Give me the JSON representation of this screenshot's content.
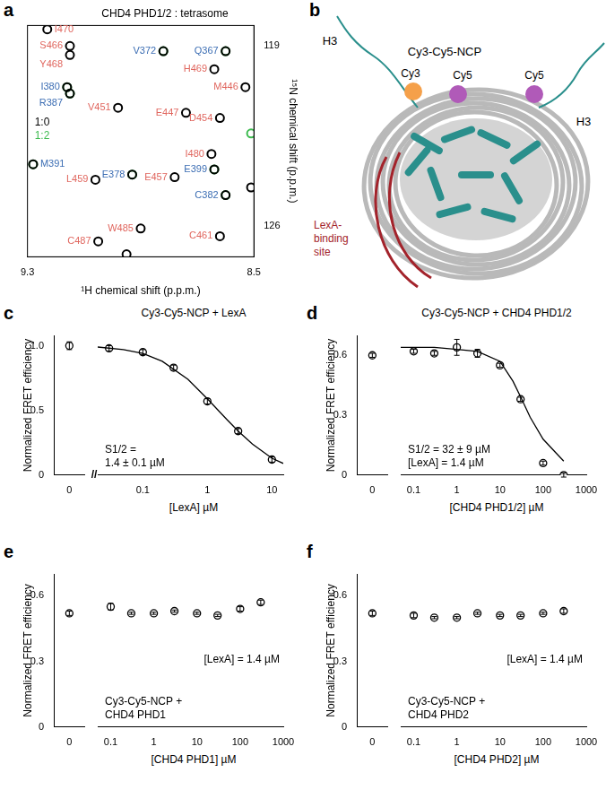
{
  "chart_data": [
    {
      "panel": "a",
      "type": "scatter",
      "title": "CHD4 PHD1/2 : tetrasome",
      "x_label": "¹H chemical shift (p.p.m.)",
      "y_label": "¹⁵N chemical shift (p.p.m.)",
      "xlim": [
        9.3,
        8.5
      ],
      "xticks": [
        9.3,
        8.5
      ],
      "ylim": [
        127.2,
        118.2
      ],
      "yticks": [
        119,
        126
      ],
      "grid": false,
      "legend": "left",
      "marker": "circle",
      "series": [
        {
          "name": "1:0",
          "color": "#000000",
          "x": [
            9.23,
            9.15,
            9.15,
            8.82,
            8.6,
            8.64,
            8.53,
            9.16,
            9.15,
            8.98,
            8.74,
            8.62,
            8.65,
            9.28,
            8.64,
            8.93,
            9.06,
            8.78,
            8.51,
            8.6,
            8.9,
            8.62,
            9.05,
            8.95
          ],
          "y": [
            118.35,
            119.0,
            119.35,
            119.2,
            119.2,
            119.9,
            120.6,
            120.6,
            120.85,
            121.4,
            121.6,
            121.8,
            123.2,
            123.6,
            123.8,
            124.0,
            124.2,
            124.1,
            124.5,
            124.8,
            126.1,
            126.4,
            126.6,
            127.1
          ],
          "point_labels": [
            "I470",
            "S466",
            "Y468",
            "V372",
            "Q367",
            "H469",
            "M446",
            "I380",
            "R387",
            "V451",
            "E447",
            "D454",
            "I480",
            "M391",
            "E399",
            "E378",
            "L459",
            "E457",
            null,
            "C382",
            "W485",
            "C461",
            "C487",
            null
          ],
          "point_label_colors": [
            "#e0665e",
            "#e0665e",
            "#e0665e",
            "#3b6db3",
            "#3b6db3",
            "#e0665e",
            "#e0665e",
            "#3b6db3",
            "#3b6db3",
            "#e0665e",
            "#e0665e",
            "#e0665e",
            "#e0665e",
            "#3b6db3",
            "#3b6db3",
            "#3b6db3",
            "#e0665e",
            "#e0665e",
            null,
            "#3b6db3",
            "#e0665e",
            "#e0665e",
            "#e0665e",
            null
          ]
        },
        {
          "name": "1:2",
          "color": "#3dbb4f",
          "x": [
            8.82,
            8.6,
            9.16,
            9.15,
            8.51,
            9.28,
            8.64,
            8.93,
            8.6
          ],
          "y": [
            119.2,
            119.2,
            120.6,
            120.85,
            122.4,
            123.6,
            123.8,
            124.0,
            124.8
          ]
        }
      ]
    },
    {
      "panel": "c",
      "type": "scatter",
      "title": "Cy3-Cy5-NCP + LexA",
      "x_label": "[LexA] µM",
      "y_label": "Normalized FRET efficiency",
      "log": "x",
      "grid": false,
      "color": "#000000",
      "marker": "circle",
      "x": [
        0,
        0.03,
        0.1,
        0.3,
        1,
        3,
        10
      ],
      "values": [
        1.0,
        0.98,
        0.95,
        0.83,
        0.57,
        0.34,
        0.12
      ],
      "errors": [
        0.03,
        0.02,
        0.02,
        0.02,
        0.02,
        0.02,
        0.02
      ],
      "fit": {
        "x": [
          0.02,
          0.05,
          0.1,
          0.2,
          0.5,
          1,
          2,
          3,
          5,
          10,
          15
        ],
        "values": [
          0.99,
          0.97,
          0.94,
          0.88,
          0.74,
          0.59,
          0.43,
          0.34,
          0.24,
          0.13,
          0.09
        ]
      },
      "xlim": [
        0.02,
        15
      ],
      "xticks": [
        0.1,
        1,
        10
      ],
      "x_break": {
        "xlim": [
          -1,
          1
        ],
        "xticks": [
          0
        ],
        "break_mark": "//"
      },
      "ylim": [
        0,
        1.08
      ],
      "yticks": [
        0,
        0.5,
        {
          "value": 1,
          "label": "1.0"
        }
      ],
      "annotations": [
        [
          "S1/2 =",
          "1.4 ± 0.1 µM"
        ]
      ]
    },
    {
      "panel": "d",
      "type": "scatter",
      "title": "Cy3-Cy5-NCP + CHD4 PHD1/2",
      "x_label": "[CHD4 PHD1/2] µM",
      "y_label": "Normalized FRET efficiency",
      "log": "x",
      "grid": false,
      "color": "#000000",
      "marker": "circle",
      "x": [
        0,
        0.1,
        0.3,
        1,
        3,
        10,
        30,
        100,
        300
      ],
      "values": [
        0.6,
        0.62,
        0.61,
        0.64,
        0.61,
        0.55,
        0.38,
        0.06,
        0.0
      ],
      "errors": [
        0.01,
        0.01,
        0.01,
        0.04,
        0.02,
        0.01,
        0.01,
        0.01,
        0.01
      ],
      "fit": {
        "x": [
          0.05,
          0.3,
          1,
          3,
          10,
          20,
          32,
          50,
          100,
          200,
          300
        ],
        "values": [
          0.64,
          0.64,
          0.63,
          0.62,
          0.57,
          0.47,
          0.38,
          0.29,
          0.18,
          0.11,
          0.07
        ]
      },
      "xlim": [
        0.05,
        1000
      ],
      "xticks": [
        0.1,
        1,
        10,
        100,
        1000
      ],
      "x_break": {
        "xlim": [
          -1,
          1
        ],
        "xticks": [
          0
        ]
      },
      "ylim": [
        0,
        0.7
      ],
      "yticks": [
        0,
        0.3,
        0.6
      ],
      "annotations": [
        [
          "S1/2 = 32 ± 9 µM",
          "[LexA] = 1.4 µM"
        ]
      ]
    },
    {
      "panel": "e",
      "type": "scatter",
      "x_label": "[CHD4 PHD1] µM",
      "y_label": "Normalized FRET efficiency",
      "log": "x",
      "grid": false,
      "color": "#000000",
      "marker": "circle",
      "x": [
        0,
        0.1,
        0.3,
        1,
        3,
        10,
        30,
        100,
        300
      ],
      "values": [
        0.52,
        0.55,
        0.52,
        0.52,
        0.53,
        0.52,
        0.51,
        0.54,
        0.57
      ],
      "errors": [
        0.01,
        0.015,
        0.005,
        0.005,
        0.005,
        0.005,
        0.005,
        0.01,
        0.01
      ],
      "xlim": [
        0.05,
        1000
      ],
      "xticks": [
        0.1,
        1,
        10,
        100,
        1000
      ],
      "x_break": {
        "xlim": [
          -1,
          1
        ],
        "xticks": [
          0
        ]
      },
      "ylim": [
        0,
        0.7
      ],
      "yticks": [
        0,
        0.3,
        0.6
      ],
      "annotations": [
        [
          "Cy3-Cy5-NCP +",
          "CHD4 PHD1"
        ],
        [
          "[LexA] = 1.4 µM"
        ]
      ]
    },
    {
      "panel": "f",
      "type": "scatter",
      "x_label": "[CHD4 PHD2] µM",
      "y_label": "Normalized FRET efficiency",
      "log": "x",
      "grid": false,
      "color": "#000000",
      "marker": "circle",
      "x": [
        0,
        0.1,
        0.3,
        1,
        3,
        10,
        30,
        100,
        300
      ],
      "values": [
        0.52,
        0.51,
        0.5,
        0.5,
        0.52,
        0.51,
        0.51,
        0.52,
        0.53
      ],
      "errors": [
        0.01,
        0.01,
        0.005,
        0.005,
        0.005,
        0.005,
        0.005,
        0.005,
        0.01
      ],
      "xlim": [
        0.05,
        1000
      ],
      "xticks": [
        0.1,
        1,
        10,
        100,
        1000
      ],
      "x_break": {
        "xlim": [
          -1,
          1
        ],
        "xticks": [
          0
        ]
      },
      "ylim": [
        0,
        0.7
      ],
      "yticks": [
        0,
        0.3,
        0.6
      ],
      "annotations": [
        [
          "Cy3-Cy5-NCP +",
          "CHD4 PHD2"
        ],
        [
          "[LexA] = 1.4 µM"
        ]
      ]
    }
  ],
  "diagram": {
    "panel": "b",
    "title": "Cy3-Cy5-NCP",
    "labels": {
      "h3": [
        "H3",
        "H3"
      ],
      "cy3": "Cy3",
      "cy5": [
        "Cy5",
        "Cy5"
      ],
      "lexa": [
        "LexA-",
        "binding",
        "site"
      ]
    }
  }
}
